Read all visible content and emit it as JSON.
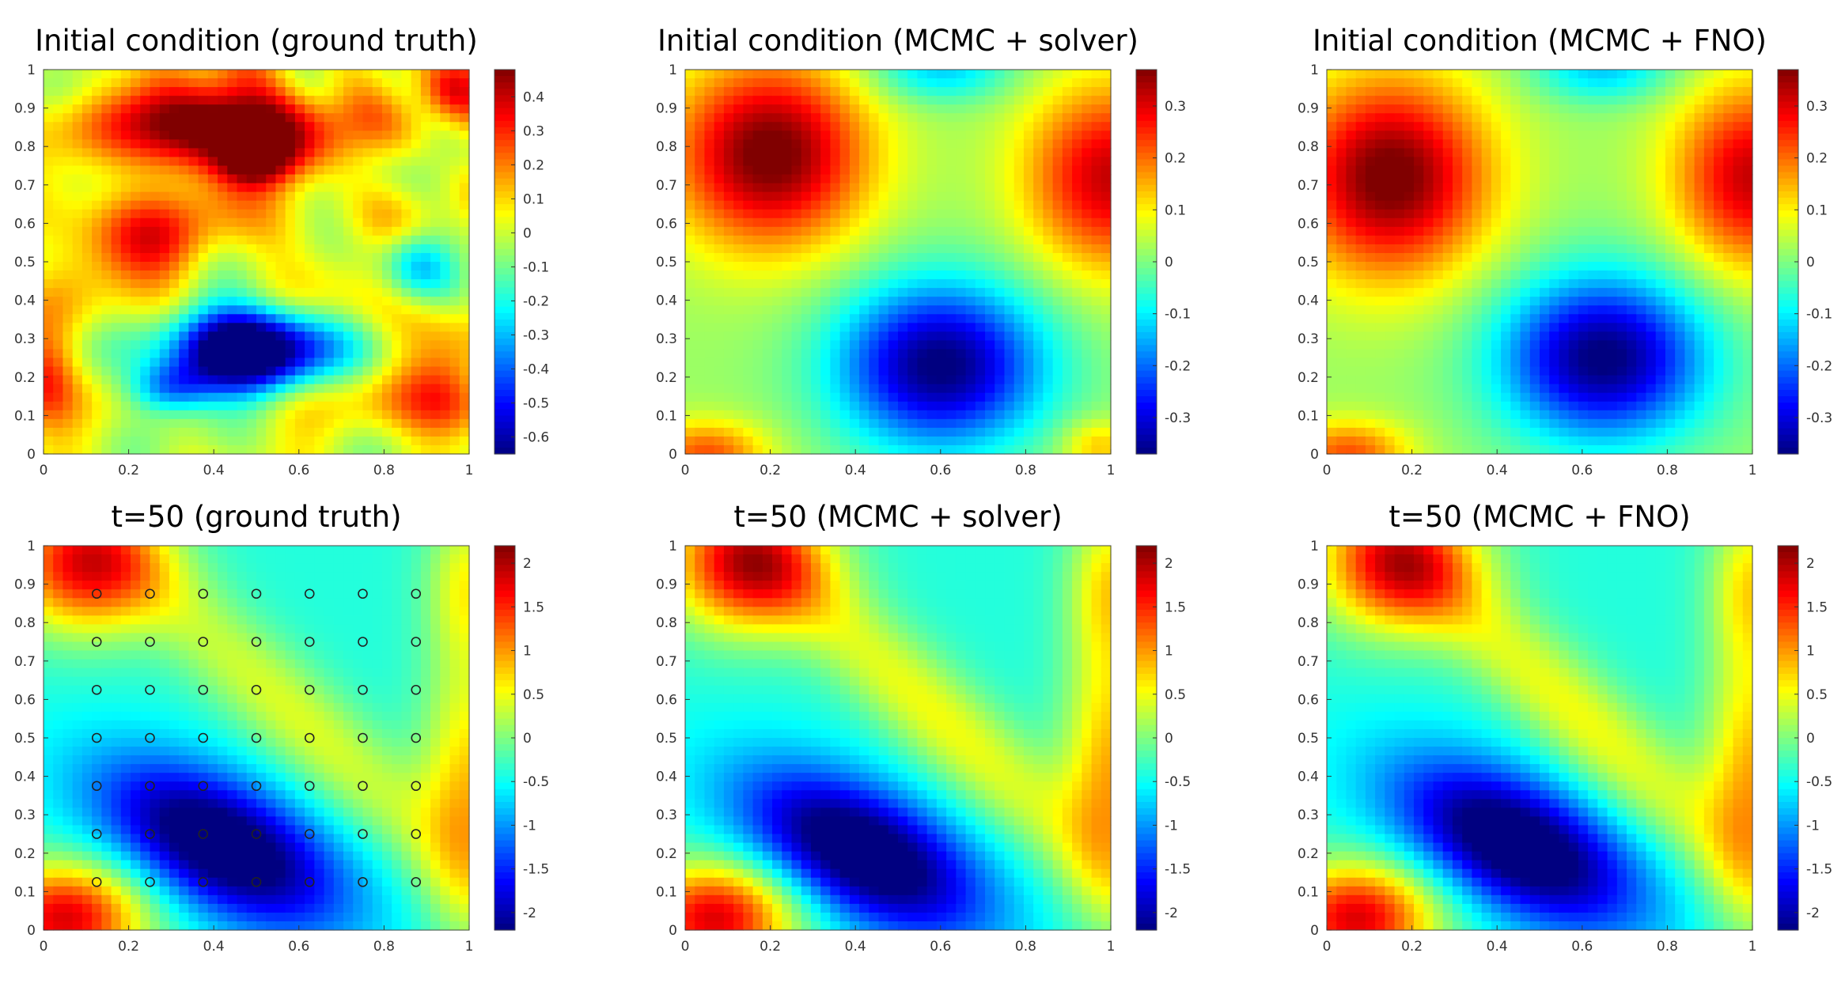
{
  "figure": {
    "panels": [
      {
        "id": "ic_truth",
        "title": "Initial condition (ground truth)",
        "field": "ic_truth",
        "colorbar_ticks": [
          "0.4",
          "0.3",
          "0.2",
          "0.1",
          "0",
          "-0.1",
          "-0.2",
          "-0.3",
          "-0.4",
          "-0.5",
          "-0.6"
        ],
        "sensors": false
      },
      {
        "id": "ic_solver",
        "title": "Initial condition (MCMC + solver)",
        "field": "ic_smooth",
        "colorbar_ticks": [
          "0.3",
          "0.2",
          "0.1",
          "0",
          "-0.1",
          "-0.2",
          "-0.3"
        ],
        "sensors": false
      },
      {
        "id": "ic_fno",
        "title": "Initial condition (MCMC + FNO)",
        "field": "ic_smooth_b",
        "colorbar_ticks": [
          "0.3",
          "0.2",
          "0.1",
          "0",
          "-0.1",
          "-0.2",
          "-0.3"
        ],
        "sensors": false
      },
      {
        "id": "t50_truth",
        "title": "t=50 (ground truth)",
        "field": "t50",
        "colorbar_ticks": [
          "2",
          "1.5",
          "1",
          "0.5",
          "0",
          "-0.5",
          "-1",
          "-1.5",
          "-2"
        ],
        "sensors": true
      },
      {
        "id": "t50_solver",
        "title": "t=50 (MCMC + solver)",
        "field": "t50_b",
        "colorbar_ticks": [
          "2",
          "1.5",
          "1",
          "0.5",
          "0",
          "-0.5",
          "-1",
          "-1.5",
          "-2"
        ],
        "sensors": false
      },
      {
        "id": "t50_fno",
        "title": "t=50 (MCMC + FNO)",
        "field": "t50_c",
        "colorbar_ticks": [
          "2",
          "1.5",
          "1",
          "0.5",
          "0",
          "-0.5",
          "-1",
          "-1.5",
          "-2"
        ],
        "sensors": false
      }
    ]
  },
  "chart_data": [
    {
      "type": "heatmap",
      "title": "Initial condition (ground truth)",
      "xlim": [
        0,
        1
      ],
      "ylim": [
        0,
        1
      ],
      "xticks": [
        "0",
        "0.2",
        "0.4",
        "0.6",
        "0.8",
        "1"
      ],
      "yticks": [
        "0",
        "0.1",
        "0.2",
        "0.3",
        "0.4",
        "0.5",
        "0.6",
        "0.7",
        "0.8",
        "0.9",
        "1"
      ],
      "colorbar": {
        "range": [
          -0.65,
          0.48
        ],
        "colormap": "jet"
      }
    },
    {
      "type": "heatmap",
      "title": "Initial condition (MCMC + solver)",
      "xlim": [
        0,
        1
      ],
      "ylim": [
        0,
        1
      ],
      "xticks": [
        "0",
        "0.2",
        "0.4",
        "0.6",
        "0.8",
        "1"
      ],
      "yticks": [
        "0",
        "0.1",
        "0.2",
        "0.3",
        "0.4",
        "0.5",
        "0.6",
        "0.7",
        "0.8",
        "0.9",
        "1"
      ],
      "colorbar": {
        "range": [
          -0.37,
          0.37
        ],
        "colormap": "jet"
      }
    },
    {
      "type": "heatmap",
      "title": "Initial condition (MCMC + FNO)",
      "xlim": [
        0,
        1
      ],
      "ylim": [
        0,
        1
      ],
      "xticks": [
        "0",
        "0.2",
        "0.4",
        "0.6",
        "0.8",
        "1"
      ],
      "yticks": [
        "0",
        "0.1",
        "0.2",
        "0.3",
        "0.4",
        "0.5",
        "0.6",
        "0.7",
        "0.8",
        "0.9",
        "1"
      ],
      "colorbar": {
        "range": [
          -0.37,
          0.37
        ],
        "colormap": "jet"
      }
    },
    {
      "type": "heatmap",
      "title": "t=50 (ground truth)",
      "xlim": [
        0,
        1
      ],
      "ylim": [
        0,
        1
      ],
      "xticks": [
        "0",
        "0.2",
        "0.4",
        "0.6",
        "0.8",
        "1"
      ],
      "yticks": [
        "0",
        "0.1",
        "0.2",
        "0.3",
        "0.4",
        "0.5",
        "0.6",
        "0.7",
        "0.8",
        "0.9",
        "1"
      ],
      "colorbar": {
        "range": [
          -2.2,
          2.2
        ],
        "colormap": "jet"
      },
      "sensor_locations": {
        "x": [
          0.125,
          0.25,
          0.375,
          0.5,
          0.625,
          0.75,
          0.875
        ],
        "y": [
          0.125,
          0.25,
          0.375,
          0.5,
          0.625,
          0.75,
          0.875
        ]
      }
    },
    {
      "type": "heatmap",
      "title": "t=50 (MCMC + solver)",
      "xlim": [
        0,
        1
      ],
      "ylim": [
        0,
        1
      ],
      "xticks": [
        "0",
        "0.2",
        "0.4",
        "0.6",
        "0.8",
        "1"
      ],
      "yticks": [
        "0",
        "0.1",
        "0.2",
        "0.3",
        "0.4",
        "0.5",
        "0.6",
        "0.7",
        "0.8",
        "0.9",
        "1"
      ],
      "colorbar": {
        "range": [
          -2.2,
          2.2
        ],
        "colormap": "jet"
      }
    },
    {
      "type": "heatmap",
      "title": "t=50 (MCMC + FNO)",
      "xlim": [
        0,
        1
      ],
      "ylim": [
        0,
        1
      ],
      "xticks": [
        "0",
        "0.2",
        "0.4",
        "0.6",
        "0.8",
        "1"
      ],
      "yticks": [
        "0",
        "0.1",
        "0.2",
        "0.3",
        "0.4",
        "0.5",
        "0.6",
        "0.7",
        "0.8",
        "0.9",
        "1"
      ],
      "colorbar": {
        "range": [
          -2.2,
          2.2
        ],
        "colormap": "jet"
      }
    }
  ]
}
